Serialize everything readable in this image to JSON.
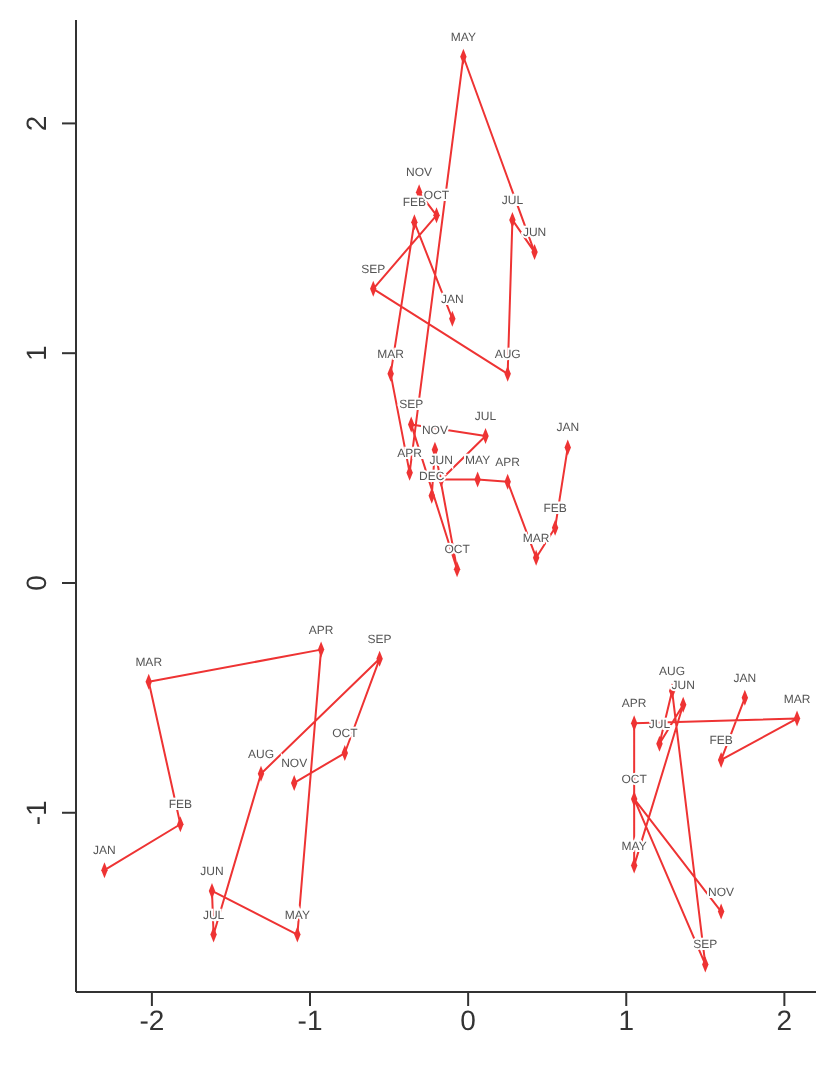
{
  "chart_data": {
    "type": "line",
    "line_style": "solid",
    "marker": "diamond",
    "xlim": [
      -2.48,
      2.2
    ],
    "ylim": [
      -1.78,
      2.45
    ],
    "xticks": [
      -2,
      -1,
      0,
      1,
      2
    ],
    "yticks": [
      -1,
      0,
      1,
      2
    ],
    "grid": false,
    "legend": false,
    "series": [
      {
        "color": "#ee3333",
        "x": [
          -0.1,
          -0.34,
          -0.49,
          -0.37,
          -0.03,
          0.42,
          0.28,
          0.25,
          -0.6,
          -0.2,
          -0.31
        ],
        "values": [
          1.15,
          1.57,
          0.91,
          0.48,
          2.29,
          1.44,
          1.58,
          0.91,
          1.28,
          1.6,
          1.7
        ]
      },
      {
        "color": "#ee3333",
        "x": [
          0.63,
          0.55,
          0.43,
          0.25,
          0.06,
          -0.17,
          0.11,
          -0.36,
          -0.07,
          -0.21,
          -0.23
        ],
        "values": [
          0.59,
          0.24,
          0.11,
          0.44,
          0.45,
          0.45,
          0.64,
          0.69,
          0.06,
          0.58,
          0.38
        ]
      },
      {
        "color": "#ee3333",
        "x": [
          -2.3,
          -1.82,
          -2.02,
          -0.93,
          -1.08,
          -1.62,
          -1.61,
          -1.31,
          -0.56,
          -0.78,
          -1.1
        ],
        "values": [
          -1.25,
          -1.05,
          -0.43,
          -0.29,
          -1.53,
          -1.34,
          -1.53,
          -0.83,
          -0.33,
          -0.74,
          -0.87
        ]
      },
      {
        "color": "#ee3333",
        "x": [
          1.75,
          1.6,
          2.08,
          1.05,
          1.05,
          1.36,
          1.21,
          1.29,
          1.5,
          1.05,
          1.6
        ],
        "values": [
          -0.5,
          -0.77,
          -0.59,
          -0.61,
          -1.23,
          -0.53,
          -0.7,
          -0.47,
          -1.66,
          -0.94,
          -1.43
        ]
      }
    ],
    "annotations": [
      {
        "text": "JAN",
        "x": -0.1,
        "y": 1.15
      },
      {
        "text": "FEB",
        "x": -0.34,
        "y": 1.57
      },
      {
        "text": "MAR",
        "x": -0.49,
        "y": 0.91
      },
      {
        "text": "APR",
        "x": -0.37,
        "y": 0.48
      },
      {
        "text": "MAY",
        "x": -0.03,
        "y": 2.29
      },
      {
        "text": "JUN",
        "x": 0.42,
        "y": 1.44
      },
      {
        "text": "JUL",
        "x": 0.28,
        "y": 1.58
      },
      {
        "text": "AUG",
        "x": 0.25,
        "y": 0.91
      },
      {
        "text": "SEP",
        "x": -0.6,
        "y": 1.28
      },
      {
        "text": "OCT",
        "x": -0.2,
        "y": 1.6
      },
      {
        "text": "NOV",
        "x": -0.31,
        "y": 1.7
      },
      {
        "text": "JAN",
        "x": 0.63,
        "y": 0.59
      },
      {
        "text": "FEB",
        "x": 0.55,
        "y": 0.24
      },
      {
        "text": "MAR",
        "x": 0.43,
        "y": 0.11
      },
      {
        "text": "APR",
        "x": 0.25,
        "y": 0.44
      },
      {
        "text": "MAY",
        "x": 0.06,
        "y": 0.45
      },
      {
        "text": "JUN",
        "x": -0.17,
        "y": 0.45
      },
      {
        "text": "JUL",
        "x": 0.11,
        "y": 0.64
      },
      {
        "text": "SEP",
        "x": -0.36,
        "y": 0.69
      },
      {
        "text": "OCT",
        "x": -0.07,
        "y": 0.06
      },
      {
        "text": "NOV",
        "x": -0.21,
        "y": 0.58
      },
      {
        "text": "DEC",
        "x": -0.23,
        "y": 0.38
      },
      {
        "text": "JAN",
        "x": -2.3,
        "y": -1.25
      },
      {
        "text": "FEB",
        "x": -1.82,
        "y": -1.05
      },
      {
        "text": "MAR",
        "x": -2.02,
        "y": -0.43
      },
      {
        "text": "APR",
        "x": -0.93,
        "y": -0.29
      },
      {
        "text": "MAY",
        "x": -1.08,
        "y": -1.53
      },
      {
        "text": "JUN",
        "x": -1.62,
        "y": -1.34
      },
      {
        "text": "JUL",
        "x": -1.61,
        "y": -1.53
      },
      {
        "text": "AUG",
        "x": -1.31,
        "y": -0.83
      },
      {
        "text": "SEP",
        "x": -0.56,
        "y": -0.33
      },
      {
        "text": "OCT",
        "x": -0.78,
        "y": -0.74
      },
      {
        "text": "NOV",
        "x": -1.1,
        "y": -0.87
      },
      {
        "text": "JAN",
        "x": 1.75,
        "y": -0.5
      },
      {
        "text": "FEB",
        "x": 1.6,
        "y": -0.77
      },
      {
        "text": "MAR",
        "x": 2.08,
        "y": -0.59
      },
      {
        "text": "APR",
        "x": 1.05,
        "y": -0.61
      },
      {
        "text": "MAY",
        "x": 1.05,
        "y": -1.23
      },
      {
        "text": "JUN",
        "x": 1.36,
        "y": -0.53
      },
      {
        "text": "JUL",
        "x": 1.21,
        "y": -0.7
      },
      {
        "text": "AUG",
        "x": 1.29,
        "y": -0.47
      },
      {
        "text": "SEP",
        "x": 1.5,
        "y": -1.66
      },
      {
        "text": "OCT",
        "x": 1.05,
        "y": -0.94
      },
      {
        "text": "NOV",
        "x": 1.6,
        "y": -1.43
      }
    ]
  }
}
